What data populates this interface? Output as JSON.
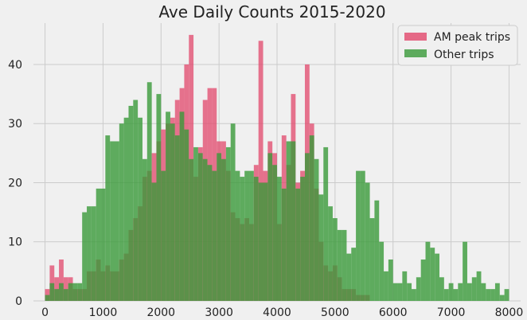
{
  "chart_data": {
    "type": "bar",
    "title": "Ave Daily Counts 2015-2020",
    "xlabel": "",
    "ylabel": "",
    "xlim": [
      -200,
      8200
    ],
    "ylim": [
      0,
      47
    ],
    "xticks": [
      0,
      1000,
      2000,
      3000,
      4000,
      5000,
      6000,
      7000,
      8000
    ],
    "yticks": [
      0,
      10,
      20,
      30,
      40
    ],
    "bin_width": 80,
    "grid": true,
    "legend_position": "top-right",
    "colors": {
      "am": "#e2476b",
      "other": "#3a9a3a",
      "overlap": "#556b2f"
    },
    "series": [
      {
        "name": "AM peak trips",
        "x_start": 0,
        "values": [
          2,
          6,
          4,
          7,
          4,
          4,
          2,
          2,
          2,
          5,
          5,
          7,
          5,
          6,
          5,
          5,
          7,
          8,
          12,
          14,
          16,
          21,
          22,
          25,
          27,
          29,
          30,
          31,
          34,
          36,
          40,
          45,
          21,
          26,
          34,
          36,
          36,
          27,
          27,
          22,
          15,
          14,
          13,
          14,
          13,
          23,
          44,
          22,
          27,
          25,
          13,
          28,
          23,
          35,
          20,
          22,
          40,
          30,
          19,
          10,
          6,
          5,
          6,
          4,
          2,
          2,
          2,
          1,
          1,
          1,
          0,
          0,
          0,
          0,
          0,
          0,
          0,
          0,
          0,
          0,
          0,
          0,
          0,
          0,
          0,
          0,
          0,
          0,
          0,
          0,
          0,
          0,
          0,
          0,
          0,
          0,
          0,
          0,
          0,
          0
        ]
      },
      {
        "name": "Other trips",
        "x_start": 0,
        "values": [
          1,
          3,
          2,
          3,
          2,
          3,
          3,
          3,
          15,
          16,
          16,
          19,
          19,
          28,
          27,
          27,
          30,
          31,
          33,
          34,
          31,
          24,
          37,
          20,
          35,
          22,
          32,
          30,
          28,
          32,
          29,
          24,
          26,
          25,
          24,
          23,
          22,
          25,
          24,
          26,
          30,
          22,
          21,
          22,
          22,
          21,
          20,
          20,
          25,
          23,
          21,
          19,
          27,
          27,
          19,
          21,
          25,
          28,
          24,
          18,
          26,
          16,
          14,
          12,
          12,
          8,
          9,
          22,
          22,
          20,
          14,
          17,
          10,
          5,
          7,
          3,
          3,
          5,
          3,
          2,
          4,
          7,
          10,
          9,
          8,
          4,
          2,
          3,
          2,
          3,
          10,
          3,
          4,
          5,
          3,
          2,
          2,
          3,
          1,
          2
        ]
      }
    ],
    "legend": [
      "AM peak trips",
      "Other trips"
    ]
  }
}
